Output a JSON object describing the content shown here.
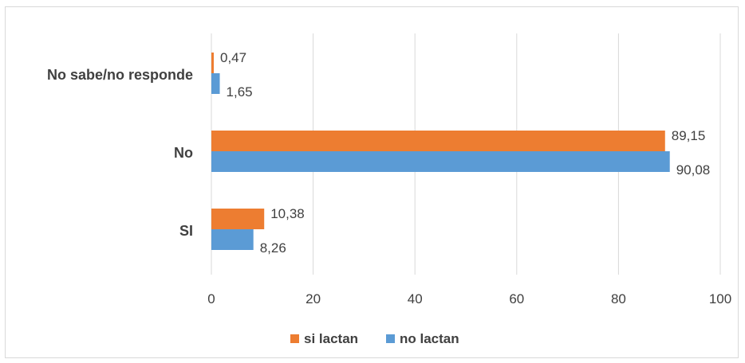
{
  "chart_data": {
    "type": "bar",
    "orientation": "horizontal",
    "categories": [
      "No sabe/no responde",
      "No",
      "SI"
    ],
    "series": [
      {
        "name": "si lactan",
        "values": [
          0.47,
          89.15,
          10.38
        ],
        "labels": [
          "0,47",
          "89,15",
          "10,38"
        ],
        "color": "#ED7D31"
      },
      {
        "name": "no lactan",
        "values": [
          1.65,
          90.08,
          8.26
        ],
        "labels": [
          "1,65",
          "90,08",
          "8,26"
        ],
        "color": "#5B9BD5"
      }
    ],
    "xlim": [
      0,
      100
    ],
    "xticks": [
      0,
      20,
      40,
      60,
      80,
      100
    ],
    "grid": true,
    "legend": "bottom"
  }
}
